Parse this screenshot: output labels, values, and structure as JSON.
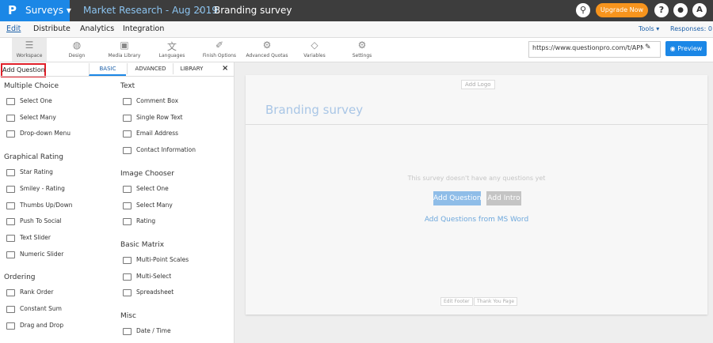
{
  "topbar": {
    "brand": "Surveys",
    "breadcrumb": [
      "Market Research - Aug 2019",
      "Branding survey"
    ],
    "upgrade": "Upgrade Now",
    "avatar": "A"
  },
  "menu": {
    "items": [
      "Edit",
      "Distribute",
      "Analytics",
      "Integration"
    ],
    "tools": "Tools",
    "responses": "Responses: 0"
  },
  "toolbar": {
    "items": [
      "Workspace",
      "Design",
      "Media Library",
      "Languages",
      "Finish Options",
      "Advanced Quotas",
      "Variables",
      "Settings"
    ],
    "url": "https://www.questionpro.com/t/APNrFZ",
    "preview": "Preview"
  },
  "panel": {
    "title": "Add Question",
    "tabs": [
      "BASIC",
      "ADVANCED",
      "LIBRARY"
    ],
    "columns": [
      [
        {
          "title": "Multiple Choice",
          "items": [
            "Select One",
            "Select Many",
            "Drop-down Menu"
          ]
        },
        {
          "title": "Graphical Rating",
          "items": [
            "Star Rating",
            "Smiley - Rating",
            "Thumbs Up/Down",
            "Push To Social",
            "Text Slider",
            "Numeric Slider"
          ]
        },
        {
          "title": "Ordering",
          "items": [
            "Rank Order",
            "Constant Sum",
            "Drag and Drop"
          ]
        }
      ],
      [
        {
          "title": "Text",
          "items": [
            "Comment Box",
            "Single Row Text",
            "Email Address",
            "Contact Information"
          ]
        },
        {
          "title": "Image Chooser",
          "items": [
            "Select One",
            "Select Many",
            "Rating"
          ]
        },
        {
          "title": "Basic Matrix",
          "items": [
            "Multi-Point Scales",
            "Multi-Select",
            "Spreadsheet"
          ]
        },
        {
          "title": "Misc",
          "items": [
            "Date / Time"
          ]
        }
      ]
    ]
  },
  "canvas": {
    "logo": "Add Logo",
    "survey_title": "Branding survey",
    "empty": "This survey doesn't have any questions yet",
    "buttons": [
      "Add Question",
      "Add Intro"
    ],
    "link": "Add Questions from MS Word",
    "footer": [
      "Edit Footer",
      "Thank You Page"
    ]
  }
}
